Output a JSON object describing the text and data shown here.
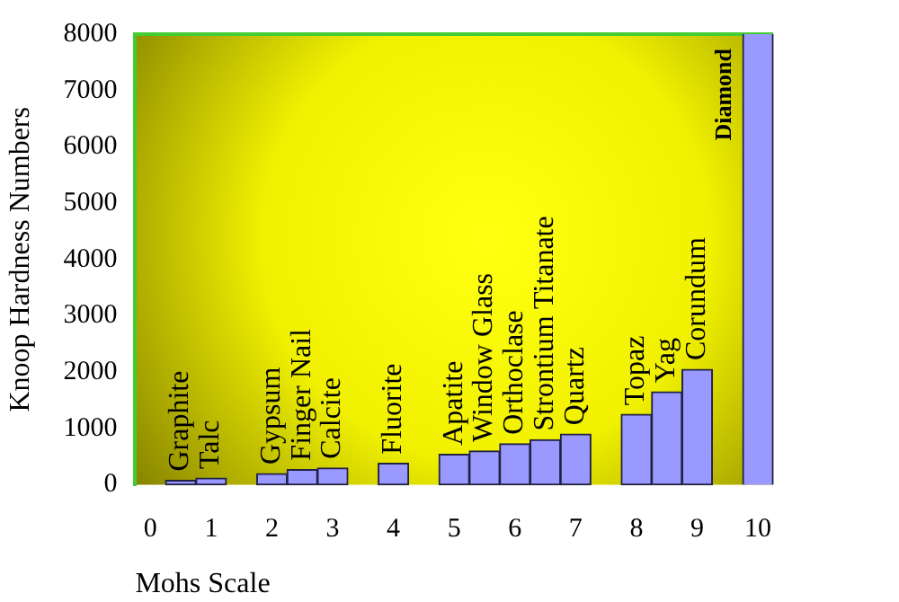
{
  "chart_data": {
    "type": "bar",
    "xlabel": "Mohs Scale",
    "ylabel": "Knoop Hardness Numbers",
    "x": [
      0.5,
      1,
      2,
      2.5,
      3,
      4,
      5,
      5.5,
      6,
      6.5,
      7,
      8,
      8.5,
      9,
      10
    ],
    "values": [
      80,
      120,
      200,
      270,
      300,
      380,
      540,
      600,
      730,
      800,
      900,
      1250,
      1650,
      2050,
      8000
    ],
    "color": "#9999ff",
    "xlim": [
      -0.25,
      10.25
    ],
    "xticks": [
      0,
      1,
      2,
      3,
      4,
      5,
      6,
      7,
      8,
      9,
      10
    ],
    "ylim": [
      0,
      8000
    ],
    "yticks": [
      0,
      1000,
      2000,
      3000,
      4000,
      5000,
      6000,
      7000,
      8000
    ],
    "grid": false,
    "legend": false,
    "annotations": [
      {
        "text": "Graphite",
        "x": 0.5,
        "y": 80
      },
      {
        "text": "Talc",
        "x": 1,
        "y": 120
      },
      {
        "text": "Gypsum",
        "x": 2,
        "y": 200
      },
      {
        "text": "Finger Nail",
        "x": 2.5,
        "y": 270
      },
      {
        "text": "Calcite",
        "x": 3,
        "y": 300
      },
      {
        "text": "Fluorite",
        "x": 4,
        "y": 380
      },
      {
        "text": "Apatite",
        "x": 5,
        "y": 540
      },
      {
        "text": "Window Glass",
        "x": 5.5,
        "y": 600
      },
      {
        "text": "Orthoclase",
        "x": 6,
        "y": 730
      },
      {
        "text": "Strontium Titanate",
        "x": 6.5,
        "y": 800
      },
      {
        "text": "Quartz",
        "x": 7,
        "y": 900
      },
      {
        "text": "Topaz",
        "x": 8,
        "y": 1250
      },
      {
        "text": "Yag",
        "x": 8.5,
        "y": 1650
      },
      {
        "text": "Corundum",
        "x": 9,
        "y": 2050
      },
      {
        "text": "Diamond",
        "x": 10,
        "y": 8000
      }
    ]
  }
}
